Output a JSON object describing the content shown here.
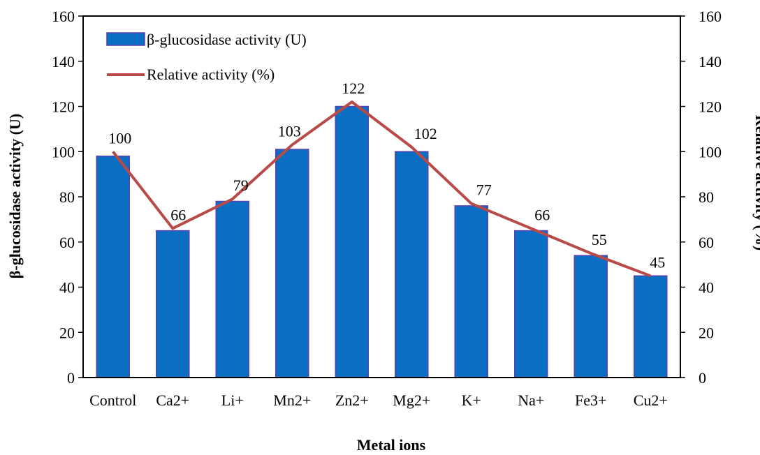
{
  "chart_data": {
    "type": "bar",
    "categories": [
      "Control",
      "Ca2+",
      "Li+",
      "Mn2+",
      "Zn2+",
      "Mg2+",
      "K+",
      "Na+",
      "Fe3+",
      "Cu2+"
    ],
    "series": [
      {
        "name": "β-glucosidase activity (U)",
        "type": "bar",
        "axis": "left",
        "values": [
          98,
          65,
          78,
          101,
          120,
          100,
          76,
          65,
          54,
          45
        ],
        "color": "#0A6FC2"
      },
      {
        "name": "Relative activity (%)",
        "type": "line",
        "axis": "right",
        "values": [
          100,
          66,
          79,
          103,
          122,
          102,
          77,
          66,
          55,
          45
        ],
        "data_labels": [
          "100",
          "66",
          "79",
          "103",
          "122",
          "102",
          "77",
          "66",
          "55",
          "45"
        ],
        "color": "#B84A47"
      }
    ],
    "xlabel": "Metal ions",
    "ylabel": "β-glucosidase activity (U)",
    "y2label": "Relative activity (%)",
    "ylim": [
      0,
      160
    ],
    "y2lim": [
      0,
      160
    ],
    "yticks": [
      "0",
      "20",
      "40",
      "60",
      "80",
      "100",
      "120",
      "140",
      "160"
    ],
    "y2ticks": [
      "0",
      "20",
      "40",
      "60",
      "80",
      "100",
      "120",
      "140",
      "160"
    ],
    "grid": false,
    "legend": "top-left inside"
  }
}
